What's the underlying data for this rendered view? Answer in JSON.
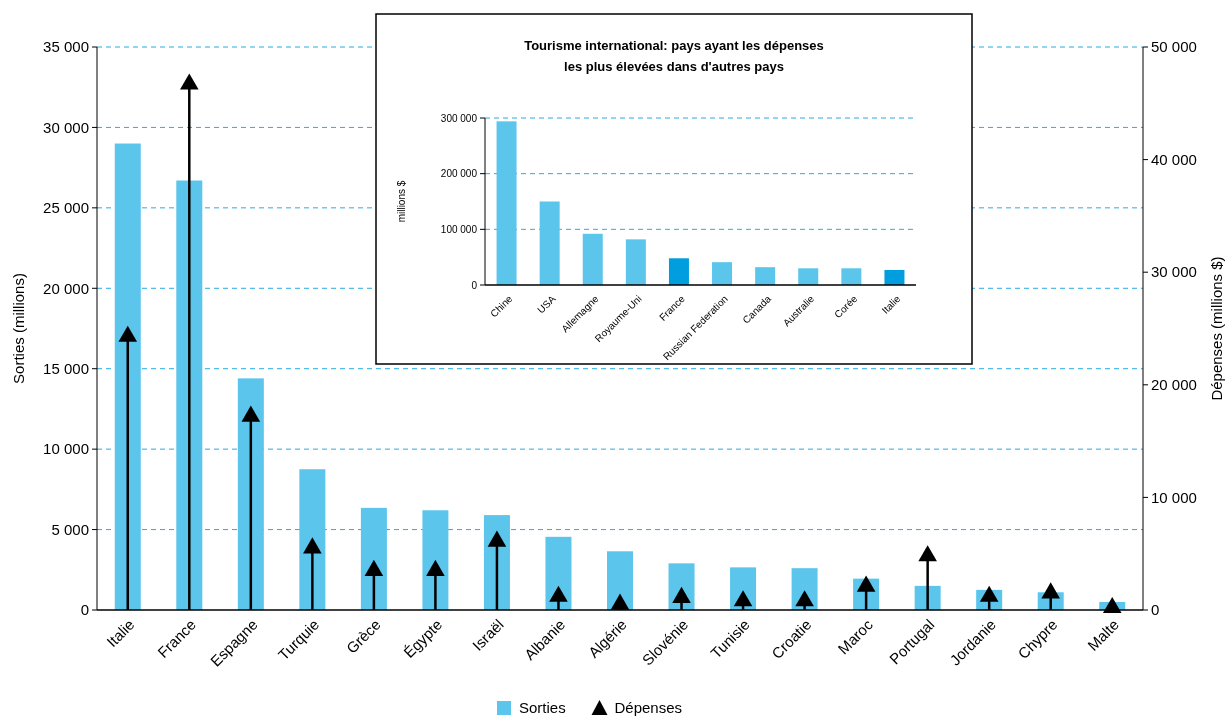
{
  "chart_data": [
    {
      "type": "bar",
      "ylabel": "Sorties (millions)",
      "y2label": "Dépenses (millions $)",
      "categories": [
        "Italie",
        "France",
        "Espagne",
        "Turquie",
        "Grèce",
        "Égypte",
        "Israël",
        "Albanie",
        "Algérie",
        "Slovénie",
        "Tunisie",
        "Croatie",
        "Maroc",
        "Portugal",
        "Jordanie",
        "Chypre",
        "Malte"
      ],
      "series": [
        {
          "name": "Sorties",
          "color": "#5bc5ec",
          "values": [
            29000,
            26700,
            14400,
            8750,
            6350,
            6200,
            5900,
            4550,
            3650,
            2900,
            2650,
            2600,
            1950,
            1500,
            1250,
            1100,
            500
          ]
        },
        {
          "name": "Dépenses",
          "type": "lollipop",
          "axis": "y2",
          "color": "#000000",
          "marker": "triangle",
          "values": [
            24300,
            46700,
            17200,
            5500,
            3500,
            3500,
            6100,
            1200,
            500,
            1100,
            800,
            800,
            2100,
            4800,
            1200,
            1500,
            200
          ]
        }
      ],
      "ylim": [
        0,
        35000
      ],
      "yticks": [
        0,
        {
          "value": 5000,
          "label": "5 000"
        },
        {
          "value": 10000,
          "label": "10 000"
        },
        {
          "value": 15000,
          "label": "15 000"
        },
        {
          "value": 20000,
          "label": "20 000"
        },
        {
          "value": 25000,
          "label": "25 000"
        },
        {
          "value": 30000,
          "label": "30 000"
        },
        {
          "value": 35000,
          "label": "35 000"
        }
      ],
      "y2lim": [
        0,
        50000
      ],
      "y2ticks": [
        0,
        {
          "value": 10000,
          "label": "10 000"
        },
        {
          "value": 20000,
          "label": "20 000"
        },
        {
          "value": 30000,
          "label": "30 000"
        },
        {
          "value": 40000,
          "label": "40 000"
        },
        {
          "value": 50000,
          "label": "50 000"
        }
      ],
      "grid": "y",
      "legend": "bottom"
    },
    {
      "type": "bar",
      "title": "Tourisme international: pays ayant les dépenses\nles plus élevées dans d'autres pays",
      "ylabel": "millions $",
      "categories": [
        "Chine",
        "USA",
        "Allemagne",
        "Royaume-Uni",
        "France",
        "Russian Federation",
        "Canada",
        "Australie",
        "Corée",
        "Italie"
      ],
      "values": [
        294000,
        150000,
        92000,
        82000,
        48000,
        41000,
        32000,
        30000,
        30000,
        27000
      ],
      "colors": [
        "#5bc5ec",
        "#5bc5ec",
        "#5bc5ec",
        "#5bc5ec",
        "#009ddf",
        "#5bc5ec",
        "#5bc5ec",
        "#5bc5ec",
        "#5bc5ec",
        "#009ddf"
      ],
      "ylim": [
        0,
        300000
      ],
      "yticks": [
        0,
        {
          "value": 100000,
          "label": "100 000"
        },
        {
          "value": 200000,
          "label": "200 000"
        },
        {
          "value": 300000,
          "label": "300 000"
        }
      ],
      "grid": "y"
    }
  ]
}
